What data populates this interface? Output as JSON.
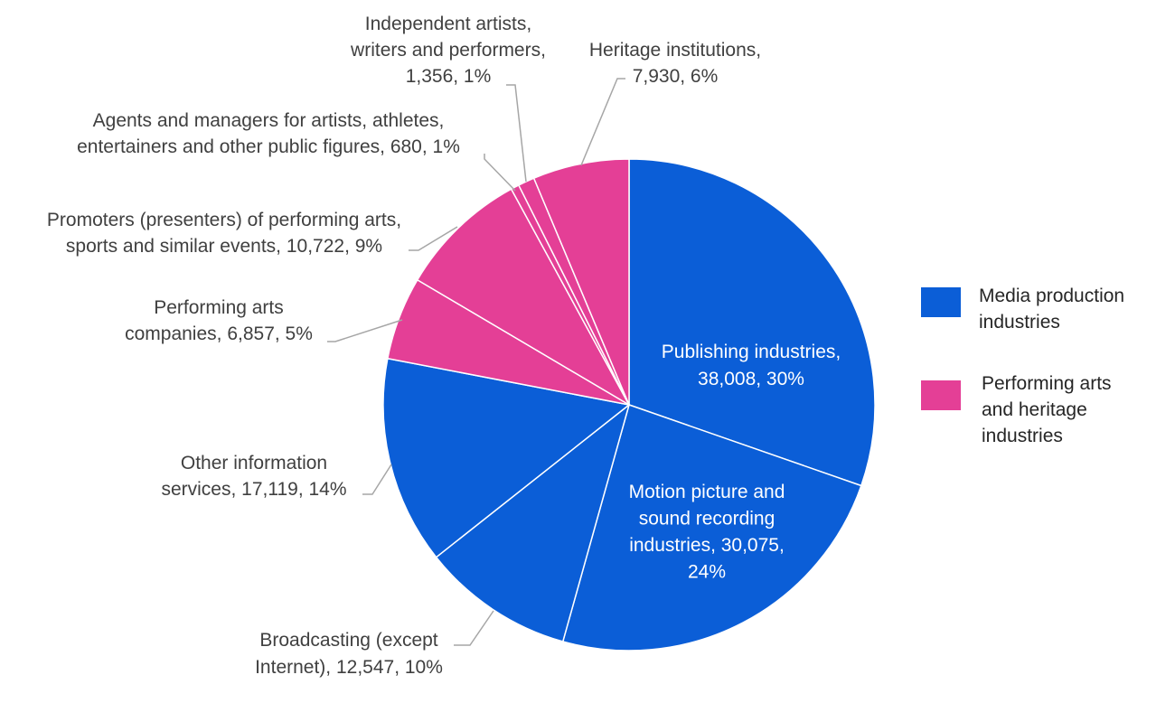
{
  "chart_data": {
    "type": "pie",
    "title": "",
    "slices": [
      {
        "label": [
          "Publishing industries,",
          "38,008, 30%"
        ],
        "value": 38008,
        "percent": 30,
        "group": "Media production industries",
        "label_position": "inside"
      },
      {
        "label": [
          "Motion picture and",
          "sound recording",
          "industries, 30,075,",
          "24%"
        ],
        "value": 30075,
        "percent": 24,
        "group": "Media production industries",
        "label_position": "inside"
      },
      {
        "label": [
          "Broadcasting (except",
          "Internet), 12,547, 10%"
        ],
        "value": 12547,
        "percent": 10,
        "group": "Media production industries",
        "label_position": "outside"
      },
      {
        "label": [
          "Other information",
          "services, 17,119, 14%"
        ],
        "value": 17119,
        "percent": 14,
        "group": "Media production industries",
        "label_position": "outside"
      },
      {
        "label": [
          "Performing arts",
          "companies, 6,857, 5%"
        ],
        "value": 6857,
        "percent": 5,
        "group": "Performing arts and heritage industries",
        "label_position": "outside"
      },
      {
        "label": [
          "Promoters (presenters) of performing arts,",
          "sports and similar events, 10,722, 9%"
        ],
        "value": 10722,
        "percent": 9,
        "group": "Performing arts and heritage industries",
        "label_position": "outside"
      },
      {
        "label": [
          "Agents and managers for artists, athletes,",
          "entertainers and other public figures, 680, 1%"
        ],
        "value": 680,
        "percent": 1,
        "group": "Performing arts and heritage industries",
        "label_position": "outside"
      },
      {
        "label": [
          "Independent artists,",
          "writers and performers,",
          "1,356, 1%"
        ],
        "value": 1356,
        "percent": 1,
        "group": "Performing arts and heritage industries",
        "label_position": "outside"
      },
      {
        "label": [
          "Heritage institutions,",
          "7,930, 6%"
        ],
        "value": 7930,
        "percent": 6,
        "group": "Performing arts and heritage industries",
        "label_position": "outside"
      }
    ],
    "legend": {
      "placement": "right",
      "entries": [
        {
          "name": [
            "Media production",
            "industries"
          ],
          "color": "#0B5ED7"
        },
        {
          "name": [
            "Performing arts",
            "and heritage",
            "industries"
          ],
          "color": "#E43F96"
        }
      ]
    }
  },
  "colors": {
    "media": "#0B5ED7",
    "performing": "#E43F96",
    "leader_line": "#A6A6A6",
    "label_text": "#404040",
    "inside_text": "#FFFFFF"
  }
}
